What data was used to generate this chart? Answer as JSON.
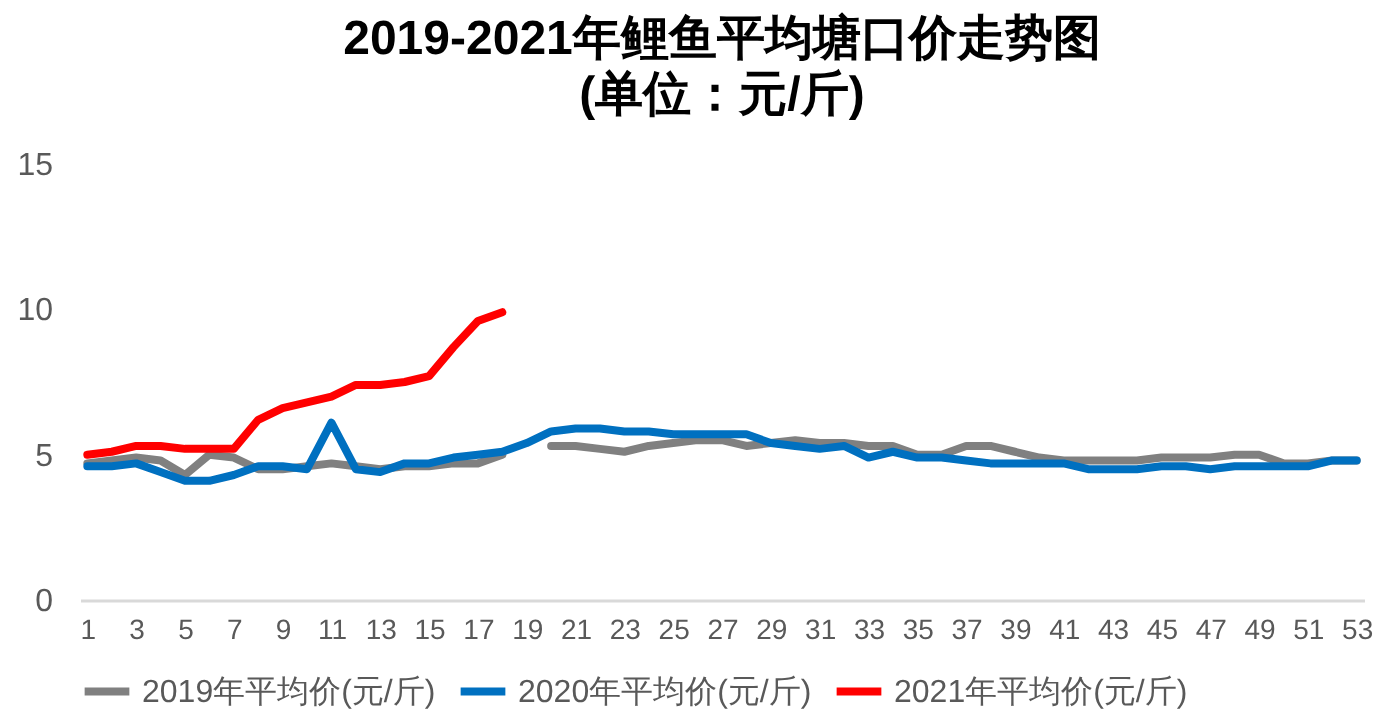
{
  "chart_data": {
    "type": "line",
    "title": "2019-2021年鲤鱼平均塘口价走势图",
    "subtitle": "(单位：元/斤)",
    "x": [
      1,
      2,
      3,
      4,
      5,
      6,
      7,
      8,
      9,
      10,
      11,
      12,
      13,
      14,
      15,
      16,
      17,
      18,
      19,
      20,
      21,
      22,
      23,
      24,
      25,
      26,
      27,
      28,
      29,
      30,
      31,
      32,
      33,
      34,
      35,
      36,
      37,
      38,
      39,
      40,
      41,
      42,
      43,
      44,
      45,
      46,
      47,
      48,
      49,
      50,
      51,
      52,
      53
    ],
    "xlim": [
      0.7,
      53.3
    ],
    "xticks": [
      1,
      3,
      5,
      7,
      9,
      11,
      13,
      15,
      17,
      19,
      21,
      23,
      25,
      27,
      29,
      31,
      33,
      35,
      37,
      39,
      41,
      43,
      45,
      47,
      49,
      51,
      53
    ],
    "series": [
      {
        "name": "2019年平均价(元/斤)",
        "color": "#808080",
        "values": [
          4.7,
          4.8,
          4.9,
          4.8,
          4.3,
          5.0,
          4.9,
          4.5,
          4.5,
          4.6,
          4.7,
          4.6,
          4.5,
          4.6,
          4.6,
          4.7,
          4.7,
          5.0,
          null,
          5.3,
          5.3,
          5.2,
          5.1,
          5.3,
          5.4,
          5.5,
          5.5,
          5.3,
          5.4,
          5.5,
          5.4,
          5.4,
          5.3,
          5.3,
          5.0,
          5.0,
          5.3,
          5.3,
          5.1,
          4.9,
          4.8,
          4.8,
          4.8,
          4.8,
          4.9,
          4.9,
          4.9,
          5.0,
          5.0,
          4.7,
          4.7,
          4.8,
          4.8
        ]
      },
      {
        "name": "2020年平均价(元/斤)",
        "color": "#0070c0",
        "values": [
          4.6,
          4.6,
          4.7,
          4.4,
          4.1,
          4.1,
          4.3,
          4.6,
          4.6,
          4.5,
          6.1,
          4.5,
          4.4,
          4.7,
          4.7,
          4.9,
          5.0,
          5.1,
          5.4,
          5.8,
          5.9,
          5.9,
          5.8,
          5.8,
          5.7,
          5.7,
          5.7,
          5.7,
          5.4,
          5.3,
          5.2,
          5.3,
          4.9,
          5.1,
          4.9,
          4.9,
          4.8,
          4.7,
          4.7,
          4.7,
          4.7,
          4.5,
          4.5,
          4.5,
          4.6,
          4.6,
          4.5,
          4.6,
          4.6,
          4.6,
          4.6,
          4.8,
          4.8
        ]
      },
      {
        "name": "2021年平均价(元/斤)",
        "color": "#ff0000",
        "values": [
          5.0,
          5.1,
          5.3,
          5.3,
          5.2,
          5.2,
          5.2,
          6.2,
          6.6,
          6.8,
          7.0,
          7.4,
          7.4,
          7.5,
          7.7,
          8.7,
          9.6,
          9.9,
          null,
          null,
          null,
          null,
          null,
          null,
          null,
          null,
          null,
          null,
          null,
          null,
          null,
          null,
          null,
          null,
          null,
          null,
          null,
          null,
          null,
          null,
          null,
          null,
          null,
          null,
          null,
          null,
          null,
          null,
          null,
          null,
          null,
          null,
          null
        ]
      }
    ],
    "ylim": [
      0,
      15
    ],
    "yticks": [
      0,
      5,
      10,
      15
    ],
    "grid": false,
    "legend": "bottom"
  }
}
